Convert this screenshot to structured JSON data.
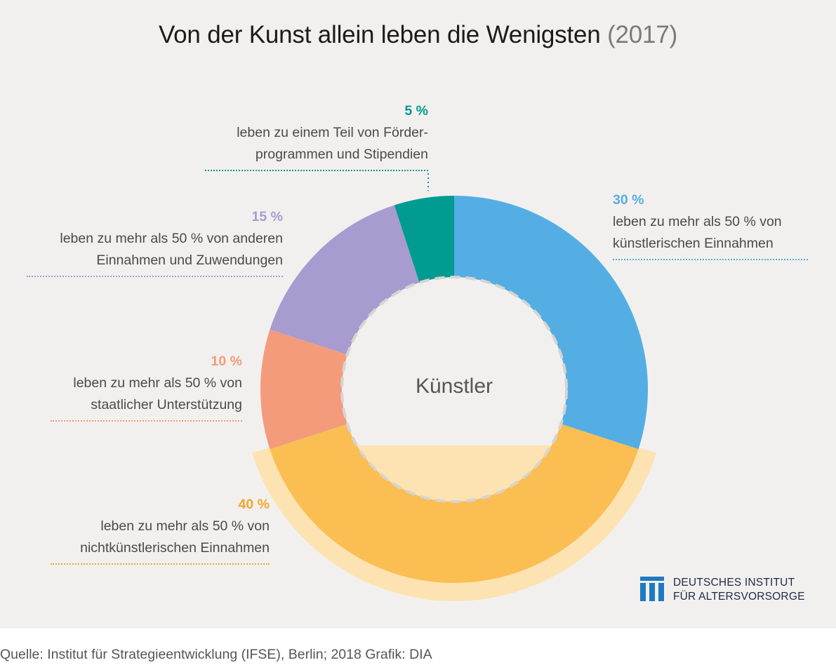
{
  "title": "Von der Kunst allein leben die Wenigsten",
  "title_year": "(2017)",
  "chart_data": {
    "type": "pie",
    "variant": "donut",
    "center_label": "Künstler",
    "slices": [
      {
        "value": 30,
        "pct_label": "30 %",
        "lines": [
          "leben zu mehr als 50 % von",
          "künstlerischen Einnahmen"
        ],
        "color": "#54aee3"
      },
      {
        "value": 40,
        "pct_label": "40 %",
        "lines": [
          "leben zu mehr als 50 % von",
          "nichtkünstlerischen Einnahmen"
        ],
        "color": "#fbbe52"
      },
      {
        "value": 10,
        "pct_label": "10 %",
        "lines": [
          "leben zu mehr als 50 % von",
          "staatlicher Unterstützung"
        ],
        "color": "#f49b7b"
      },
      {
        "value": 15,
        "pct_label": "15 %",
        "lines": [
          "leben zu mehr als 50 % von anderen",
          "Einnahmen und Zuwendungen"
        ],
        "color": "#a79bcf"
      },
      {
        "value": 5,
        "pct_label": "5 %",
        "lines": [
          "leben zu einem Teil von Förder-",
          "programmen und Stipendien"
        ],
        "color": "#009b91"
      }
    ]
  },
  "logo": {
    "line1": "DEUTSCHES INSTITUT",
    "line2": "FÜR ALTERSVORSORGE"
  },
  "source": "Quelle: Institut für Strategieentwicklung (IFSE), Berlin; 2018  Grafik: DIA"
}
